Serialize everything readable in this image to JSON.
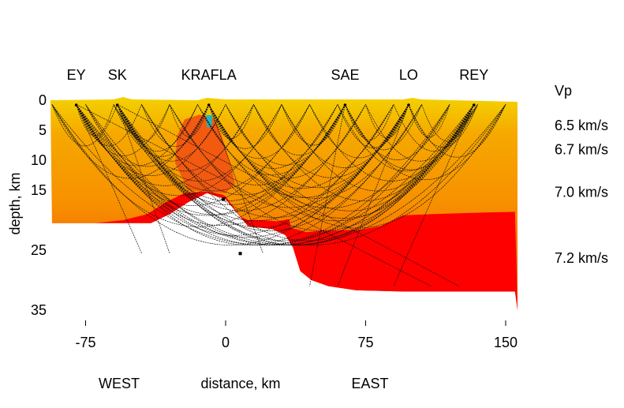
{
  "chart_data": {
    "type": "area",
    "xlabel": "distance, km",
    "ylabel": "depth, km",
    "x_range": [
      -100,
      155
    ],
    "y_range": [
      0,
      35
    ],
    "y_reversed": true,
    "x_ticks": [
      -75,
      0,
      75,
      150
    ],
    "y_ticks": [
      0,
      5,
      10,
      15,
      25,
      35
    ],
    "direction_labels": [
      "WEST",
      "EAST"
    ],
    "stations": [
      {
        "name": "EY",
        "x": -80
      },
      {
        "name": "SK",
        "x": -58
      },
      {
        "name": "KRAFLA",
        "x": -9
      },
      {
        "name": "SAE",
        "x": 64
      },
      {
        "name": "LO",
        "x": 98
      },
      {
        "name": "REY",
        "x": 133
      }
    ],
    "vp_title": "Vp",
    "vp_labels": [
      {
        "text": "6.5 km/s",
        "depth": 4.2
      },
      {
        "text": "6.7 km/s",
        "depth": 8.2
      },
      {
        "text": "7.0 km/s",
        "depth": 15.3
      },
      {
        "text": "7.2 km/s",
        "depth": 26.3
      }
    ],
    "moho_profile": [
      [
        -93,
        20.5
      ],
      [
        -70,
        20.5
      ],
      [
        -55,
        20.0
      ],
      [
        -42,
        19.0
      ],
      [
        -32,
        17.0
      ],
      [
        -22,
        15.5
      ],
      [
        -10,
        15.2
      ],
      [
        -2,
        15.7
      ],
      [
        0,
        16.0
      ],
      [
        3,
        17.3
      ],
      [
        8,
        19.4
      ],
      [
        12,
        20.0
      ],
      [
        20,
        20.0
      ],
      [
        28,
        20.2
      ],
      [
        34,
        19.8
      ],
      [
        35,
        21.3
      ],
      [
        39,
        21.6
      ],
      [
        43,
        22.0
      ],
      [
        50,
        21.8
      ],
      [
        60,
        21.7
      ],
      [
        72,
        21.6
      ],
      [
        83,
        21.0
      ],
      [
        90,
        20.0
      ],
      [
        95,
        19.2
      ],
      [
        110,
        19.0
      ],
      [
        130,
        18.8
      ],
      [
        155,
        18.6
      ]
    ],
    "model_bottom": [
      [
        -93,
        20.5
      ],
      [
        -40,
        20.5
      ],
      [
        -30,
        19.0
      ],
      [
        -20,
        17.0
      ],
      [
        -10,
        15.5
      ],
      [
        0,
        16.5
      ],
      [
        12,
        21.0
      ],
      [
        25,
        21.5
      ],
      [
        32,
        22.5
      ],
      [
        36,
        24.5
      ],
      [
        40,
        28.5
      ],
      [
        46,
        30.0
      ],
      [
        55,
        31.0
      ],
      [
        70,
        31.7
      ],
      [
        95,
        31.9
      ],
      [
        155,
        31.9
      ]
    ],
    "colors": {
      "surface": "#2b6fd0",
      "shallow_blue": "#1ea0c4",
      "green": "#4cc24a",
      "yellow": "#f4d400",
      "orange": "#f79b00",
      "red_orange": "#f25500",
      "red": "#ff0000"
    }
  }
}
